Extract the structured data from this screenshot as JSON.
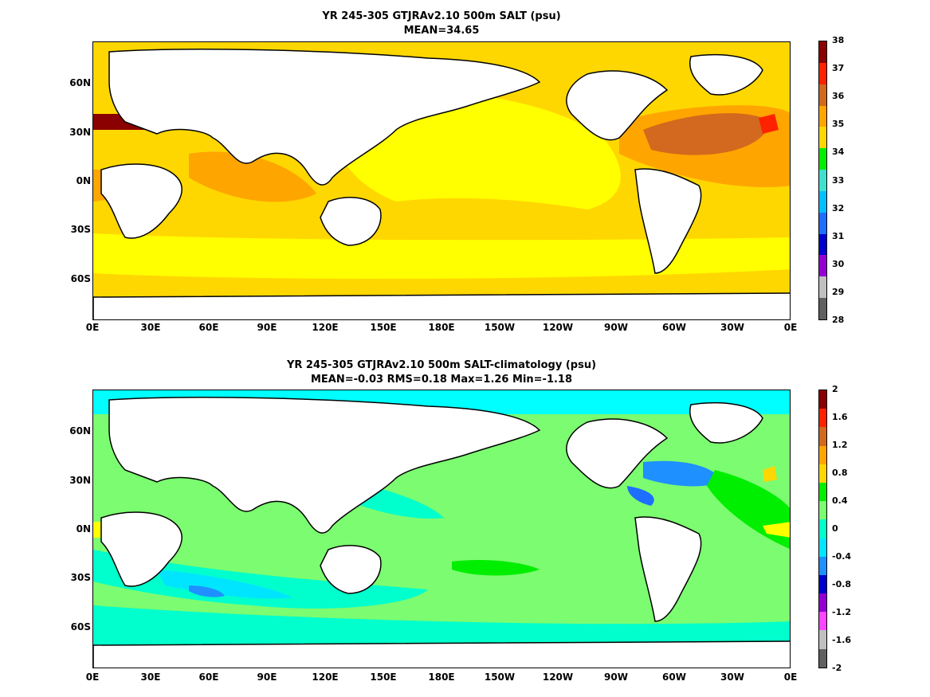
{
  "panels": [
    {
      "title_line1": "YR 245-305 GTJRAv2.10 500m SALT (psu)",
      "title_line2": "MEAN=34.65",
      "colorbar_labels": [
        "38",
        "37",
        "36",
        "35",
        "34",
        "33",
        "32",
        "31",
        "30",
        "29",
        "28"
      ],
      "colorbar_colors": [
        "#8b0000",
        "#ff2200",
        "#d2691e",
        "#ffa500",
        "#ffd700",
        "#00ee00",
        "#40e0d0",
        "#00bfff",
        "#1e6fff",
        "#0000cd",
        "#9400d3",
        "#c0c0c0",
        "#606060"
      ]
    },
    {
      "title_line1": "YR 245-305 GTJRAv2.10 500m SALT-climatology (psu)",
      "title_line2": "MEAN=-0.03   RMS=0.18   Max=1.26   Min=-1.18",
      "colorbar_labels": [
        "2",
        "1.6",
        "1.2",
        "0.8",
        "0.4",
        "0",
        "-0.4",
        "-0.8",
        "-1.2",
        "-1.6",
        "-2"
      ],
      "colorbar_colors": [
        "#8b0000",
        "#ff2200",
        "#d2691e",
        "#ffa500",
        "#ffd700",
        "#00ee00",
        "#7cfc70",
        "#00ffcc",
        "#00e5ff",
        "#1e90ff",
        "#0000cd",
        "#9400d3",
        "#ff44ff",
        "#c0c0c0",
        "#606060"
      ]
    }
  ],
  "lat_labels": [
    "60N",
    "30N",
    "0N",
    "30S",
    "60S"
  ],
  "lon_labels": [
    "0E",
    "30E",
    "60E",
    "90E",
    "120E",
    "150E",
    "180E",
    "150W",
    "120W",
    "90W",
    "60W",
    "30W",
    "0E"
  ],
  "colors": {
    "panel1_base": "#ffd700",
    "panel1_pacific": "#ffff00",
    "panel1_atlantic": "#d2691e",
    "panel2_base": "#7cfc70",
    "panel2_cyan": "#00e5ff",
    "land": "#ffffff"
  }
}
